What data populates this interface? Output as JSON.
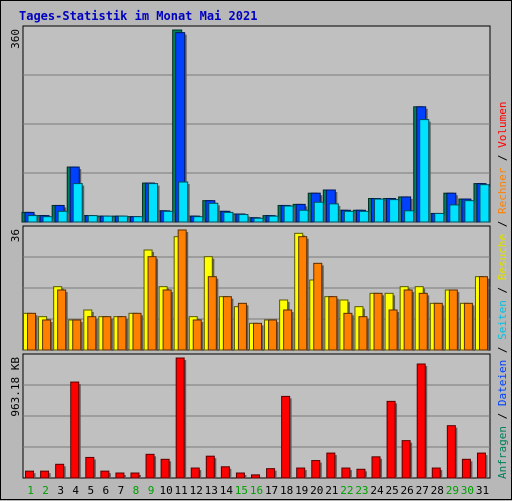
{
  "title": "Tages-Statistik im Monat Mai 2021",
  "chart_data": {
    "type": "bar",
    "title": "Tages-Statistik im Monat Mai 2021",
    "categories": [
      "1",
      "2",
      "3",
      "4",
      "5",
      "6",
      "7",
      "8",
      "9",
      "10",
      "11",
      "12",
      "13",
      "14",
      "15",
      "16",
      "17",
      "18",
      "19",
      "20",
      "21",
      "22",
      "23",
      "24",
      "25",
      "26",
      "27",
      "28",
      "29",
      "30",
      "31"
    ],
    "weekend_days": [
      "1",
      "2",
      "8",
      "9",
      "15",
      "16",
      "22",
      "23",
      "29",
      "30"
    ],
    "colors": {
      "anfragen": "#00805a",
      "dateien": "#0040ff",
      "seiten": "#00e0ff",
      "besuche": "#ffff00",
      "rechner": "#ff8000",
      "volumen": "#ff0000",
      "weekday_label": "#000000",
      "weekend_label": "#00a000"
    },
    "panels": [
      {
        "name": "top",
        "ylabel": "360",
        "ymax": 360,
        "series": [
          {
            "name": "Anfragen",
            "values": [
              18,
              12,
              31,
              103,
              12,
              11,
              11,
              10,
              73,
              21,
              360,
              11,
              40,
              20,
              15,
              8,
              12,
              31,
              33,
              54,
              60,
              22,
              22,
              44,
              44,
              47,
              216,
              16,
              54,
              43,
              72
            ]
          },
          {
            "name": "Dateien",
            "values": [
              18,
              12,
              31,
              103,
              12,
              11,
              11,
              10,
              73,
              21,
              355,
              11,
              40,
              20,
              15,
              8,
              12,
              31,
              33,
              54,
              60,
              22,
              22,
              44,
              44,
              47,
              216,
              16,
              54,
              43,
              72
            ]
          },
          {
            "name": "Seiten",
            "values": [
              12,
              10,
              20,
              72,
              12,
              11,
              11,
              10,
              72,
              20,
              75,
              10,
              35,
              18,
              14,
              7,
              11,
              30,
              22,
              37,
              34,
              20,
              20,
              43,
              42,
              21,
              192,
              16,
              32,
              40,
              70
            ]
          }
        ]
      },
      {
        "name": "middle",
        "ylabel": "36",
        "ymax": 36,
        "series": [
          {
            "name": "Besuche",
            "values": [
              11,
              10,
              19,
              9,
              12,
              10,
              10,
              11,
              30,
              19,
              34,
              10,
              28,
              16,
              13,
              8,
              9,
              15,
              35,
              21,
              16,
              15,
              13,
              17,
              17,
              19,
              19,
              14,
              18,
              14,
              22
            ]
          },
          {
            "name": "Rechner",
            "values": [
              11,
              9,
              18,
              9,
              10,
              10,
              10,
              11,
              28,
              18,
              36,
              9,
              22,
              16,
              14,
              8,
              9,
              12,
              34,
              26,
              16,
              11,
              10,
              17,
              12,
              18,
              17,
              14,
              18,
              14,
              22
            ]
          }
        ]
      },
      {
        "name": "bottom",
        "ylabel": "963.18 KB",
        "ymax": 963.18,
        "series": [
          {
            "name": "Volumen",
            "values": [
              55,
              55,
              110,
              770,
              165,
              55,
              40,
              40,
              190,
              150,
              963,
              80,
              175,
              90,
              40,
              25,
              75,
              655,
              80,
              140,
              200,
              80,
              70,
              170,
              615,
              300,
              915,
              80,
              420,
              150,
              200
            ]
          }
        ]
      }
    ],
    "legend_right": [
      {
        "text": "Anfragen",
        "color": "#00805a"
      },
      {
        "text": " / ",
        "color": "#000000"
      },
      {
        "text": "Dateien",
        "color": "#0040ff"
      },
      {
        "text": " / ",
        "color": "#000000"
      },
      {
        "text": "Seiten",
        "color": "#00c0e0"
      },
      {
        "text": " / ",
        "color": "#000000"
      },
      {
        "text": "Besuche",
        "color": "#e0e000"
      },
      {
        "text": " / ",
        "color": "#000000"
      },
      {
        "text": "Rechner",
        "color": "#ff8000"
      },
      {
        "text": " / ",
        "color": "#000000"
      },
      {
        "text": "Volumen",
        "color": "#ff0000"
      }
    ]
  }
}
